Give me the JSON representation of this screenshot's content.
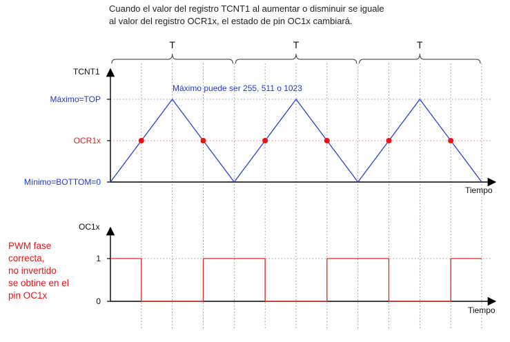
{
  "caption": {
    "line1": "Cuando el valor del registro TCNT1 al aumentar o disminuir se iguale",
    "line2": "al valor del registro OCR1x, el estado de pin OC1x cambiará."
  },
  "period_label": "T",
  "top_axis": {
    "ylabel": "TCNT1",
    "xlabel": "Tiempo",
    "level_labels": {
      "max": "Máximo=TOP",
      "ocr": "OCR1x",
      "min": "Mínimo=BOTTOM=0"
    },
    "annotation": "Máximo puede ser 255, 511 o 1023"
  },
  "bottom_axis": {
    "ylabel": "OC1x",
    "xlabel": "Tiempo",
    "level_labels": {
      "high": "1",
      "low": "0"
    }
  },
  "note": {
    "lines": [
      "PWM fase",
      "correcta,",
      "no invertido",
      "se obtine en el",
      "pin OC1x"
    ]
  },
  "colors": {
    "triangle": "#2a3fdb",
    "compare_points": "#ee1111",
    "pwm": "#e0271b",
    "axis": "#000000",
    "grid": "#777777",
    "ocr_line": "#f08080",
    "blue_label": "#1f3ad6",
    "red_label": "#e0271b"
  },
  "chart_data": {
    "type": "line",
    "periods": 3,
    "counter_levels": {
      "bottom": 0,
      "ocr": 0.5,
      "top": 1
    },
    "counter_waveform": {
      "x": [
        0,
        0.5,
        1,
        1.5,
        2,
        2.5,
        3
      ],
      "y": [
        0,
        1,
        0,
        1,
        0,
        1,
        0
      ]
    },
    "compare_match_x": [
      0.25,
      0.75,
      1.25,
      1.75,
      2.25,
      2.75
    ],
    "pwm_output": {
      "x": [
        0,
        0.25,
        0.25,
        0.75,
        0.75,
        1.25,
        1.25,
        1.75,
        1.75,
        2.25,
        2.25,
        2.75,
        2.75,
        3
      ],
      "y": [
        1,
        1,
        0,
        0,
        1,
        1,
        0,
        0,
        1,
        1,
        0,
        0,
        1,
        1
      ]
    }
  }
}
